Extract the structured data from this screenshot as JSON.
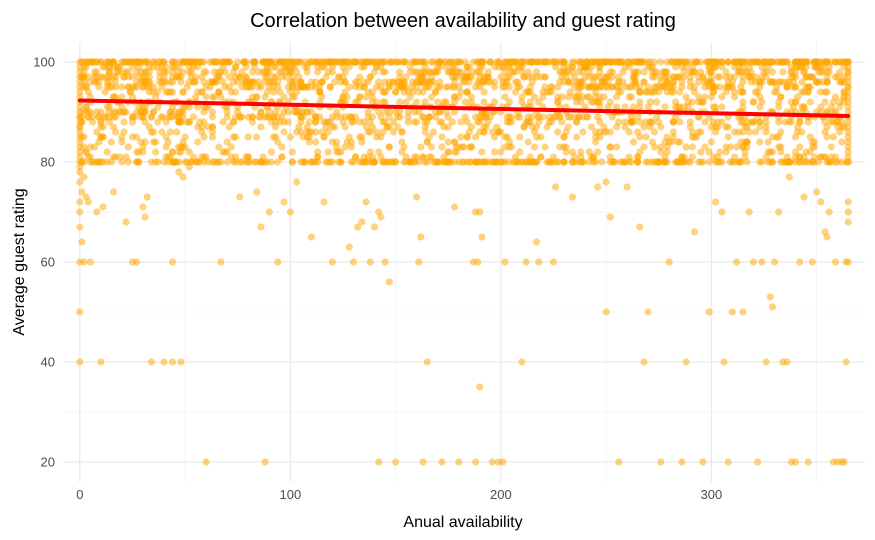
{
  "chart_data": {
    "type": "scatter",
    "title": "Correlation between availability and guest rating",
    "xlabel": "Anual availability",
    "ylabel": "Average guest rating",
    "xlim": [
      -8,
      373
    ],
    "ylim": [
      16,
      104
    ],
    "x_ticks": [
      0,
      100,
      200,
      300
    ],
    "y_ticks": [
      20,
      40,
      60,
      80,
      100
    ],
    "x_minor_ticks": [
      50,
      150,
      250,
      350
    ],
    "y_minor_ticks": [
      30,
      50,
      70,
      90
    ],
    "grid": true,
    "legend": "none",
    "colors": {
      "points": "#FFA500",
      "trend_line": "#FF0000"
    },
    "trend_line": {
      "x": [
        0,
        365
      ],
      "y": [
        92.3,
        89.2
      ]
    },
    "density_note": "dense band of points from about 80 to 100 across all x",
    "points": [
      [
        0,
        40
      ],
      [
        0,
        50
      ],
      [
        0,
        60
      ],
      [
        1,
        64
      ],
      [
        0,
        67
      ],
      [
        0,
        70
      ],
      [
        0,
        72
      ],
      [
        1,
        74
      ],
      [
        0,
        76
      ],
      [
        2,
        77
      ],
      [
        3,
        73
      ],
      [
        2,
        60
      ],
      [
        5,
        60
      ],
      [
        10,
        40
      ],
      [
        11,
        71
      ],
      [
        4,
        72
      ],
      [
        8,
        70
      ],
      [
        16,
        74
      ],
      [
        20,
        80
      ],
      [
        22,
        68
      ],
      [
        25,
        60
      ],
      [
        27,
        60
      ],
      [
        30,
        71
      ],
      [
        31,
        69
      ],
      [
        32,
        73
      ],
      [
        34,
        40
      ],
      [
        36,
        80
      ],
      [
        40,
        40
      ],
      [
        44,
        60
      ],
      [
        44,
        40
      ],
      [
        47,
        78
      ],
      [
        48,
        40
      ],
      [
        49,
        77
      ],
      [
        52,
        79
      ],
      [
        56,
        80
      ],
      [
        60,
        20
      ],
      [
        63,
        80
      ],
      [
        67,
        60
      ],
      [
        70,
        80
      ],
      [
        74,
        80
      ],
      [
        76,
        73
      ],
      [
        80,
        80
      ],
      [
        84,
        74
      ],
      [
        86,
        67
      ],
      [
        88,
        20
      ],
      [
        90,
        70
      ],
      [
        94,
        60
      ],
      [
        97,
        72
      ],
      [
        100,
        70
      ],
      [
        103,
        76
      ],
      [
        106,
        80
      ],
      [
        110,
        65
      ],
      [
        113,
        80
      ],
      [
        116,
        72
      ],
      [
        118,
        80
      ],
      [
        120,
        60
      ],
      [
        124,
        80
      ],
      [
        128,
        63
      ],
      [
        130,
        60
      ],
      [
        132,
        67
      ],
      [
        134,
        68
      ],
      [
        136,
        72
      ],
      [
        138,
        60
      ],
      [
        140,
        67
      ],
      [
        142,
        20
      ],
      [
        142,
        70
      ],
      [
        143,
        69
      ],
      [
        145,
        60
      ],
      [
        147,
        56
      ],
      [
        150,
        20
      ],
      [
        155,
        80
      ],
      [
        157,
        80
      ],
      [
        160,
        73
      ],
      [
        161,
        60
      ],
      [
        162,
        65
      ],
      [
        163,
        20
      ],
      [
        165,
        40
      ],
      [
        168,
        80
      ],
      [
        170,
        80
      ],
      [
        172,
        20
      ],
      [
        176,
        80
      ],
      [
        178,
        71
      ],
      [
        180,
        20
      ],
      [
        182,
        80
      ],
      [
        184,
        80
      ],
      [
        187,
        60
      ],
      [
        188,
        20
      ],
      [
        188,
        70
      ],
      [
        189,
        60
      ],
      [
        190,
        35
      ],
      [
        190,
        70
      ],
      [
        191,
        65
      ],
      [
        192,
        80
      ],
      [
        196,
        20
      ],
      [
        199,
        20
      ],
      [
        201,
        20
      ],
      [
        202,
        60
      ],
      [
        206,
        80
      ],
      [
        210,
        40
      ],
      [
        212,
        60
      ],
      [
        215,
        80
      ],
      [
        217,
        64
      ],
      [
        218,
        60
      ],
      [
        222,
        80
      ],
      [
        225,
        60
      ],
      [
        226,
        75
      ],
      [
        230,
        80
      ],
      [
        234,
        73
      ],
      [
        238,
        80
      ],
      [
        242,
        80
      ],
      [
        246,
        75
      ],
      [
        250,
        76
      ],
      [
        250,
        50
      ],
      [
        252,
        69
      ],
      [
        256,
        20
      ],
      [
        260,
        75
      ],
      [
        262,
        80
      ],
      [
        266,
        67
      ],
      [
        268,
        40
      ],
      [
        270,
        50
      ],
      [
        272,
        80
      ],
      [
        276,
        20
      ],
      [
        280,
        60
      ],
      [
        284,
        80
      ],
      [
        286,
        20
      ],
      [
        288,
        40
      ],
      [
        292,
        66
      ],
      [
        294,
        80
      ],
      [
        296,
        20
      ],
      [
        299,
        50
      ],
      [
        302,
        72
      ],
      [
        305,
        70
      ],
      [
        306,
        40
      ],
      [
        308,
        20
      ],
      [
        310,
        50
      ],
      [
        312,
        60
      ],
      [
        315,
        50
      ],
      [
        318,
        70
      ],
      [
        320,
        60
      ],
      [
        322,
        20
      ],
      [
        324,
        60
      ],
      [
        326,
        40
      ],
      [
        328,
        53
      ],
      [
        329,
        51
      ],
      [
        330,
        60
      ],
      [
        332,
        70
      ],
      [
        334,
        40
      ],
      [
        336,
        40
      ],
      [
        337,
        77
      ],
      [
        338,
        20
      ],
      [
        340,
        20
      ],
      [
        342,
        60
      ],
      [
        344,
        73
      ],
      [
        346,
        20
      ],
      [
        348,
        60
      ],
      [
        350,
        74
      ],
      [
        352,
        72
      ],
      [
        354,
        66
      ],
      [
        355,
        65
      ],
      [
        356,
        70
      ],
      [
        358,
        20
      ],
      [
        359,
        60
      ],
      [
        360,
        20
      ],
      [
        362,
        20
      ],
      [
        363,
        20
      ],
      [
        364,
        40
      ],
      [
        364,
        60
      ],
      [
        365,
        60
      ],
      [
        365,
        70
      ],
      [
        365,
        68
      ],
      [
        365,
        72
      ]
    ]
  }
}
